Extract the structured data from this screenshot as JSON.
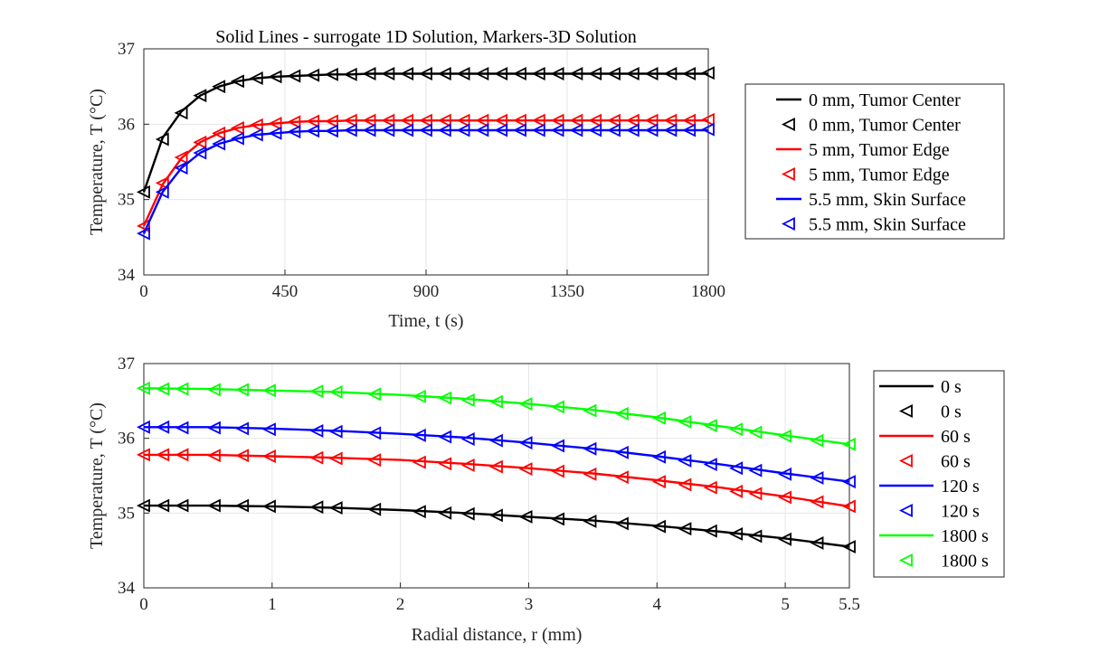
{
  "chart_data": [
    {
      "type": "line",
      "title": "Solid Lines - surrogate 1D Solution, Markers-3D Solution",
      "xlabel": "Time, t (s)",
      "ylabel": "Temperature, T (°C)",
      "xlim": [
        0,
        1800
      ],
      "ylim": [
        34,
        37
      ],
      "xticks": [
        "0",
        "450",
        "900",
        "1350",
        "1800"
      ],
      "yticks": [
        "34",
        "35",
        "36",
        "37"
      ],
      "grid": true,
      "legend_position": "right",
      "legend": [
        "0 mm, Tumor Center",
        "0 mm, Tumor Center",
        "5 mm, Tumor Edge",
        "5 mm, Tumor Edge",
        "5.5 mm, Skin Surface",
        "5.5 mm, Skin Surface"
      ],
      "marker_x": [
        0,
        60,
        120,
        180,
        240,
        300,
        360,
        420,
        480,
        540,
        600,
        660,
        720,
        780,
        840,
        900,
        960,
        1020,
        1080,
        1140,
        1200,
        1260,
        1320,
        1380,
        1440,
        1500,
        1560,
        1620,
        1680,
        1740,
        1800
      ],
      "series": [
        {
          "name": "0 mm, Tumor Center",
          "color": "#000000",
          "line_y": [
            35.1,
            35.82,
            36.17,
            36.38,
            36.5,
            36.57,
            36.61,
            36.63,
            36.64,
            36.65,
            36.66,
            36.66,
            36.67,
            36.67,
            36.67,
            36.67,
            36.67,
            36.67,
            36.67,
            36.67,
            36.67,
            36.67,
            36.67,
            36.67,
            36.67,
            36.67,
            36.67,
            36.67,
            36.67,
            36.67,
            36.67
          ],
          "marker_y": [
            35.1,
            35.8,
            36.15,
            36.38,
            36.5,
            36.57,
            36.61,
            36.63,
            36.64,
            36.65,
            36.66,
            36.66,
            36.67,
            36.67,
            36.67,
            36.67,
            36.67,
            36.67,
            36.67,
            36.67,
            36.67,
            36.67,
            36.67,
            36.67,
            36.67,
            36.67,
            36.67,
            36.67,
            36.67,
            36.67,
            36.68
          ]
        },
        {
          "name": "5 mm, Tumor Edge",
          "color": "#ff0000",
          "line_y": [
            34.65,
            35.2,
            35.55,
            35.76,
            35.88,
            35.95,
            35.99,
            36.01,
            36.03,
            36.04,
            36.04,
            36.05,
            36.05,
            36.05,
            36.05,
            36.05,
            36.05,
            36.05,
            36.05,
            36.05,
            36.05,
            36.05,
            36.05,
            36.05,
            36.05,
            36.05,
            36.05,
            36.05,
            36.05,
            36.05,
            36.05
          ],
          "marker_y": [
            34.65,
            35.22,
            35.56,
            35.76,
            35.88,
            35.95,
            35.99,
            36.01,
            36.03,
            36.04,
            36.04,
            36.05,
            36.05,
            36.05,
            36.05,
            36.05,
            36.05,
            36.05,
            36.05,
            36.05,
            36.05,
            36.05,
            36.05,
            36.05,
            36.05,
            36.05,
            36.05,
            36.05,
            36.05,
            36.05,
            36.06
          ]
        },
        {
          "name": "5.5 mm, Skin Surface",
          "color": "#0000ff",
          "line_y": [
            34.55,
            35.1,
            35.42,
            35.62,
            35.74,
            35.81,
            35.86,
            35.88,
            35.9,
            35.91,
            35.91,
            35.92,
            35.92,
            35.92,
            35.92,
            35.92,
            35.92,
            35.92,
            35.92,
            35.92,
            35.92,
            35.92,
            35.92,
            35.92,
            35.92,
            35.92,
            35.92,
            35.92,
            35.92,
            35.92,
            35.92
          ],
          "marker_y": [
            34.55,
            35.1,
            35.42,
            35.62,
            35.74,
            35.81,
            35.86,
            35.88,
            35.9,
            35.91,
            35.91,
            35.92,
            35.92,
            35.92,
            35.92,
            35.92,
            35.92,
            35.92,
            35.92,
            35.92,
            35.92,
            35.92,
            35.92,
            35.92,
            35.92,
            35.92,
            35.92,
            35.92,
            35.92,
            35.92,
            35.93
          ]
        }
      ]
    },
    {
      "type": "line",
      "xlabel": "Radial distance, r (mm)",
      "ylabel": "Temperature, T (°C)",
      "xlim": [
        0,
        5.5
      ],
      "ylim": [
        34,
        37
      ],
      "xticks": [
        "0",
        "1",
        "2",
        "3",
        "4",
        "5",
        "5.5"
      ],
      "yticks": [
        "34",
        "35",
        "36",
        "37"
      ],
      "grid": true,
      "legend_position": "right",
      "legend": [
        "0 s",
        "0 s",
        "60 s",
        "60 s",
        "120 s",
        "120 s",
        "1800 s",
        "1800 s"
      ],
      "marker_x": [
        0,
        0.15,
        0.3,
        0.55,
        0.77,
        0.98,
        1.35,
        1.5,
        1.8,
        2.15,
        2.35,
        2.53,
        2.75,
        2.98,
        3.23,
        3.48,
        3.73,
        4.02,
        4.22,
        4.42,
        4.62,
        4.77,
        5.0,
        5.25,
        5.5
      ],
      "line_x": [
        0,
        0.5,
        1.0,
        1.5,
        2.0,
        2.5,
        3.0,
        3.5,
        4.0,
        4.5,
        5.0,
        5.5
      ],
      "series": [
        {
          "name": "0 s",
          "color": "#000000",
          "line_y": [
            35.1,
            35.1,
            35.09,
            35.07,
            35.04,
            35.0,
            34.95,
            34.9,
            34.83,
            34.75,
            34.66,
            34.55
          ],
          "marker_y": [
            35.1,
            35.1,
            35.1,
            35.1,
            35.1,
            35.09,
            35.08,
            35.07,
            35.05,
            35.02,
            35.0,
            34.99,
            34.97,
            34.95,
            34.92,
            34.89,
            34.86,
            34.82,
            34.79,
            34.76,
            34.72,
            34.69,
            34.65,
            34.6,
            34.55
          ]
        },
        {
          "name": "60 s",
          "color": "#ff0000",
          "line_y": [
            35.78,
            35.78,
            35.76,
            35.74,
            35.71,
            35.66,
            35.6,
            35.53,
            35.44,
            35.34,
            35.22,
            35.09
          ],
          "marker_y": [
            35.78,
            35.78,
            35.78,
            35.77,
            35.77,
            35.76,
            35.74,
            35.73,
            35.71,
            35.68,
            35.66,
            35.64,
            35.62,
            35.59,
            35.56,
            35.52,
            35.48,
            35.42,
            35.38,
            35.34,
            35.29,
            35.26,
            35.21,
            35.15,
            35.09
          ]
        },
        {
          "name": "120 s",
          "color": "#0000ff",
          "line_y": [
            36.15,
            36.15,
            36.13,
            36.1,
            36.06,
            36.01,
            35.94,
            35.86,
            35.76,
            35.65,
            35.53,
            35.42
          ],
          "marker_y": [
            36.15,
            36.15,
            36.14,
            36.14,
            36.13,
            36.12,
            36.1,
            36.09,
            36.07,
            36.04,
            36.02,
            35.99,
            35.97,
            35.94,
            35.9,
            35.86,
            35.81,
            35.75,
            35.7,
            35.65,
            35.6,
            35.57,
            35.52,
            35.47,
            35.42
          ]
        },
        {
          "name": "1800 s",
          "color": "#00ff00",
          "line_y": [
            36.67,
            36.66,
            36.64,
            36.62,
            36.58,
            36.53,
            36.46,
            36.38,
            36.28,
            36.16,
            36.04,
            35.92
          ],
          "marker_y": [
            36.67,
            36.66,
            36.66,
            36.65,
            36.65,
            36.64,
            36.63,
            36.62,
            36.59,
            36.56,
            36.54,
            36.51,
            36.49,
            36.46,
            36.42,
            36.37,
            36.33,
            36.27,
            36.22,
            36.17,
            36.12,
            36.08,
            36.03,
            35.97,
            35.92
          ]
        }
      ]
    }
  ]
}
